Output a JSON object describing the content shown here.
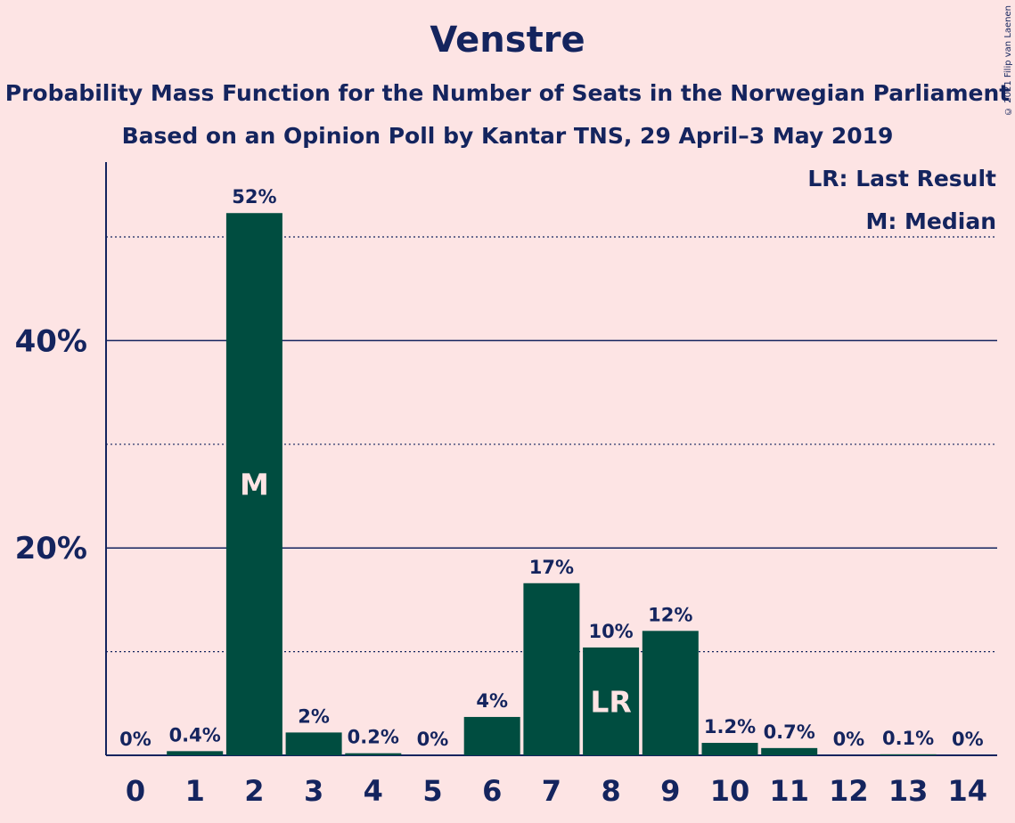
{
  "chart_data": {
    "type": "bar",
    "title": "Venstre",
    "subtitle": "Probability Mass Function for the Number of Seats in the Norwegian Parliament",
    "subtitle2": "Based on an Opinion Poll by Kantar TNS, 29 April–3 May 2019",
    "copyright": "© 2021 Filip van Laenen",
    "categories": [
      "0",
      "1",
      "2",
      "3",
      "4",
      "5",
      "6",
      "7",
      "8",
      "9",
      "10",
      "11",
      "12",
      "13",
      "14"
    ],
    "values": [
      0,
      0.4,
      52.3,
      2.2,
      0.2,
      0,
      3.7,
      16.6,
      10.4,
      12.0,
      1.2,
      0.7,
      0,
      0.1,
      0
    ],
    "value_labels": [
      "0%",
      "0.4%",
      "52%",
      "2%",
      "0.2%",
      "0%",
      "4%",
      "17%",
      "10%",
      "12%",
      "1.2%",
      "0.7%",
      "0%",
      "0.1%",
      "0%"
    ],
    "bar_markers": [
      {
        "category": "2",
        "label": "M"
      },
      {
        "category": "8",
        "label": "LR"
      }
    ],
    "ylim": [
      0,
      57
    ],
    "y_ticks": [
      {
        "value": 20,
        "label": "20%"
      },
      {
        "value": 40,
        "label": "40%"
      }
    ],
    "y_minor_gridlines": [
      10,
      30,
      50
    ],
    "legend": {
      "position": "top-right",
      "entries": [
        "LR: Last Result",
        "M: Median"
      ]
    },
    "colors": {
      "background": "#fde4e4",
      "bar": "#004d40",
      "text": "#14245e",
      "marker_text": "#fde4e4"
    }
  }
}
